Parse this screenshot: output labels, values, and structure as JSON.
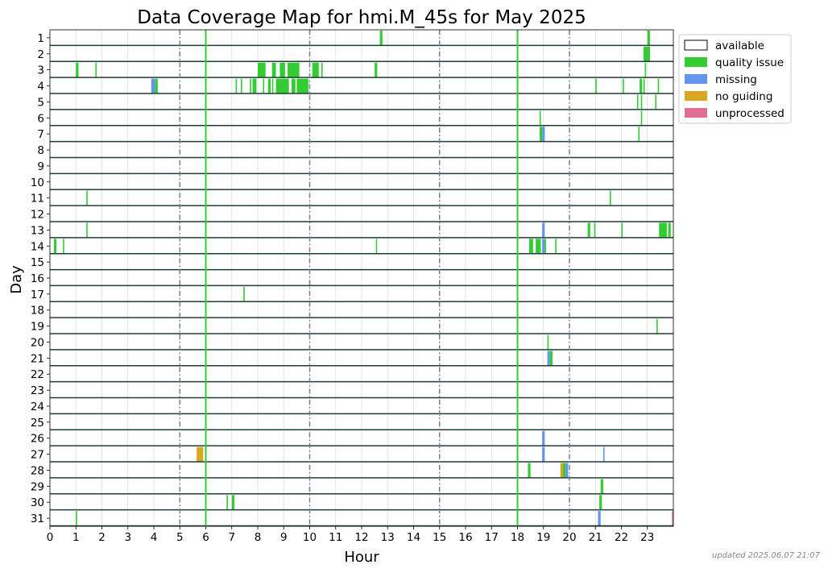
{
  "updated": "updated 2025.06.07 21:07",
  "chart_data": {
    "type": "timeline",
    "title": "Data Coverage Map for hmi.M_45s for May 2025",
    "xlabel": "Hour",
    "ylabel": "Day",
    "xlim": [
      0,
      24
    ],
    "x_ticks": [
      "0",
      "1",
      "2",
      "3",
      "4",
      "5",
      "6",
      "7",
      "8",
      "9",
      "10",
      "11",
      "12",
      "13",
      "14",
      "15",
      "16",
      "17",
      "18",
      "19",
      "20",
      "21",
      "22",
      "23"
    ],
    "days": [
      "1",
      "2",
      "3",
      "4",
      "5",
      "6",
      "7",
      "8",
      "9",
      "10",
      "11",
      "12",
      "13",
      "14",
      "15",
      "16",
      "17",
      "18",
      "19",
      "20",
      "21",
      "22",
      "23",
      "24",
      "25",
      "26",
      "27",
      "28",
      "29",
      "30",
      "31"
    ],
    "dashed_hours": [
      5,
      10,
      15,
      20
    ],
    "grid": true,
    "legend_position": "upper-right-outside",
    "legend": [
      {
        "key": "available",
        "label": "available",
        "color": "#ffffff"
      },
      {
        "key": "quality",
        "label": "quality issue",
        "color": "#33cc33"
      },
      {
        "key": "missing",
        "label": "missing",
        "color": "#6495ed"
      },
      {
        "key": "noguiding",
        "label": "no guiding",
        "color": "#daa520"
      },
      {
        "key": "unprocessed",
        "label": "unprocessed",
        "color": "#db7093"
      }
    ],
    "colors": {
      "quality": "#33cc33",
      "missing": "#6495ed",
      "noguiding": "#daa520",
      "unprocessed": "#db7093",
      "rowline": "#1e3d3a",
      "dashline": "#708090",
      "grid": "#dcdcdc"
    },
    "full_day_quality_hours": [
      6.0,
      18.0
    ],
    "segments": [
      {
        "day": 1,
        "start": 12.7,
        "end": 12.8,
        "type": "quality"
      },
      {
        "day": 1,
        "start": 23.0,
        "end": 23.1,
        "type": "quality"
      },
      {
        "day": 2,
        "start": 22.85,
        "end": 23.1,
        "type": "quality"
      },
      {
        "day": 3,
        "start": 1.0,
        "end": 1.1,
        "type": "quality"
      },
      {
        "day": 3,
        "start": 1.75,
        "end": 1.8,
        "type": "quality"
      },
      {
        "day": 3,
        "start": 8.0,
        "end": 8.3,
        "type": "quality"
      },
      {
        "day": 3,
        "start": 8.55,
        "end": 8.7,
        "type": "quality"
      },
      {
        "day": 3,
        "start": 8.85,
        "end": 9.05,
        "type": "quality"
      },
      {
        "day": 3,
        "start": 9.15,
        "end": 9.6,
        "type": "quality"
      },
      {
        "day": 3,
        "start": 10.1,
        "end": 10.35,
        "type": "quality"
      },
      {
        "day": 3,
        "start": 10.45,
        "end": 10.5,
        "type": "quality"
      },
      {
        "day": 3,
        "start": 12.5,
        "end": 12.6,
        "type": "quality"
      },
      {
        "day": 3,
        "start": 22.9,
        "end": 22.95,
        "type": "quality"
      },
      {
        "day": 4,
        "start": 3.9,
        "end": 4.05,
        "type": "missing"
      },
      {
        "day": 4,
        "start": 4.05,
        "end": 4.15,
        "type": "quality"
      },
      {
        "day": 4,
        "start": 7.15,
        "end": 7.2,
        "type": "quality"
      },
      {
        "day": 4,
        "start": 7.35,
        "end": 7.4,
        "type": "quality"
      },
      {
        "day": 4,
        "start": 7.7,
        "end": 7.75,
        "type": "quality"
      },
      {
        "day": 4,
        "start": 7.8,
        "end": 7.95,
        "type": "quality"
      },
      {
        "day": 4,
        "start": 8.2,
        "end": 8.25,
        "type": "quality"
      },
      {
        "day": 4,
        "start": 8.4,
        "end": 8.5,
        "type": "quality"
      },
      {
        "day": 4,
        "start": 8.55,
        "end": 8.6,
        "type": "quality"
      },
      {
        "day": 4,
        "start": 8.7,
        "end": 9.2,
        "type": "quality"
      },
      {
        "day": 4,
        "start": 9.3,
        "end": 9.45,
        "type": "quality"
      },
      {
        "day": 4,
        "start": 9.5,
        "end": 9.95,
        "type": "quality"
      },
      {
        "day": 4,
        "start": 21.0,
        "end": 21.05,
        "type": "quality"
      },
      {
        "day": 4,
        "start": 22.05,
        "end": 22.1,
        "type": "quality"
      },
      {
        "day": 4,
        "start": 22.7,
        "end": 22.8,
        "type": "quality"
      },
      {
        "day": 4,
        "start": 22.85,
        "end": 22.9,
        "type": "quality"
      },
      {
        "day": 4,
        "start": 23.4,
        "end": 23.45,
        "type": "quality"
      },
      {
        "day": 5,
        "start": 22.6,
        "end": 22.65,
        "type": "quality"
      },
      {
        "day": 5,
        "start": 22.75,
        "end": 22.8,
        "type": "quality"
      },
      {
        "day": 5,
        "start": 23.3,
        "end": 23.35,
        "type": "quality"
      },
      {
        "day": 6,
        "start": 18.85,
        "end": 18.9,
        "type": "quality"
      },
      {
        "day": 6,
        "start": 22.75,
        "end": 22.8,
        "type": "quality"
      },
      {
        "day": 7,
        "start": 18.85,
        "end": 18.95,
        "type": "quality"
      },
      {
        "day": 7,
        "start": 18.95,
        "end": 19.05,
        "type": "missing"
      },
      {
        "day": 7,
        "start": 22.65,
        "end": 22.7,
        "type": "quality"
      },
      {
        "day": 11,
        "start": 1.4,
        "end": 1.45,
        "type": "quality"
      },
      {
        "day": 11,
        "start": 21.55,
        "end": 21.6,
        "type": "quality"
      },
      {
        "day": 13,
        "start": 1.4,
        "end": 1.45,
        "type": "quality"
      },
      {
        "day": 13,
        "start": 18.95,
        "end": 19.05,
        "type": "missing"
      },
      {
        "day": 13,
        "start": 20.7,
        "end": 20.8,
        "type": "quality"
      },
      {
        "day": 13,
        "start": 20.95,
        "end": 21.0,
        "type": "quality"
      },
      {
        "day": 13,
        "start": 22.0,
        "end": 22.05,
        "type": "quality"
      },
      {
        "day": 13,
        "start": 23.45,
        "end": 23.75,
        "type": "quality"
      },
      {
        "day": 13,
        "start": 23.8,
        "end": 23.9,
        "type": "quality"
      },
      {
        "day": 14,
        "start": 0.15,
        "end": 0.25,
        "type": "quality"
      },
      {
        "day": 14,
        "start": 0.5,
        "end": 0.55,
        "type": "quality"
      },
      {
        "day": 14,
        "start": 12.55,
        "end": 12.58,
        "type": "quality"
      },
      {
        "day": 14,
        "start": 18.45,
        "end": 18.6,
        "type": "quality"
      },
      {
        "day": 14,
        "start": 18.7,
        "end": 18.9,
        "type": "quality"
      },
      {
        "day": 14,
        "start": 18.95,
        "end": 19.05,
        "type": "missing"
      },
      {
        "day": 14,
        "start": 19.05,
        "end": 19.1,
        "type": "quality"
      },
      {
        "day": 14,
        "start": 19.45,
        "end": 19.5,
        "type": "quality"
      },
      {
        "day": 17,
        "start": 7.45,
        "end": 7.5,
        "type": "quality"
      },
      {
        "day": 19,
        "start": 23.35,
        "end": 23.4,
        "type": "quality"
      },
      {
        "day": 20,
        "start": 19.15,
        "end": 19.2,
        "type": "quality"
      },
      {
        "day": 21,
        "start": 19.15,
        "end": 19.25,
        "type": "missing"
      },
      {
        "day": 21,
        "start": 19.25,
        "end": 19.35,
        "type": "quality"
      },
      {
        "day": 26,
        "start": 18.95,
        "end": 19.05,
        "type": "missing"
      },
      {
        "day": 27,
        "start": 5.65,
        "end": 5.75,
        "type": "noguiding"
      },
      {
        "day": 27,
        "start": 5.75,
        "end": 5.9,
        "type": "noguiding"
      },
      {
        "day": 27,
        "start": 18.95,
        "end": 19.05,
        "type": "missing"
      },
      {
        "day": 27,
        "start": 21.3,
        "end": 21.35,
        "type": "missing"
      },
      {
        "day": 28,
        "start": 18.4,
        "end": 18.5,
        "type": "quality"
      },
      {
        "day": 28,
        "start": 19.65,
        "end": 19.75,
        "type": "noguiding"
      },
      {
        "day": 28,
        "start": 19.75,
        "end": 19.85,
        "type": "quality"
      },
      {
        "day": 28,
        "start": 19.85,
        "end": 19.95,
        "type": "missing"
      },
      {
        "day": 29,
        "start": 21.2,
        "end": 21.3,
        "type": "quality"
      },
      {
        "day": 30,
        "start": 6.8,
        "end": 6.85,
        "type": "quality"
      },
      {
        "day": 30,
        "start": 7.0,
        "end": 7.1,
        "type": "quality"
      },
      {
        "day": 30,
        "start": 21.15,
        "end": 21.25,
        "type": "quality"
      },
      {
        "day": 31,
        "start": 1.0,
        "end": 1.05,
        "type": "quality"
      },
      {
        "day": 31,
        "start": 21.1,
        "end": 21.2,
        "type": "missing"
      },
      {
        "day": 31,
        "start": 23.95,
        "end": 24.0,
        "type": "unprocessed"
      }
    ]
  }
}
